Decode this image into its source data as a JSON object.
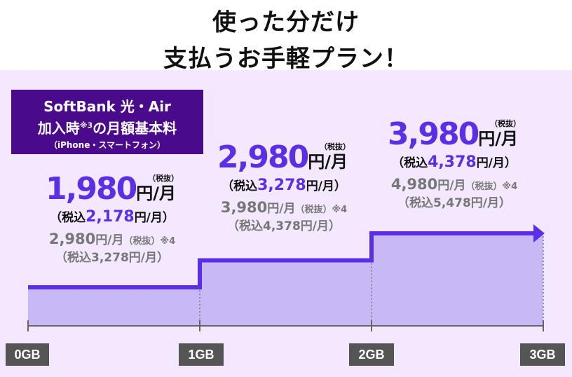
{
  "header": {
    "title_line1": "使った分だけ",
    "title_line2": "支払うお手軽プラン！"
  },
  "badge": {
    "line1": "SoftBank 光・Air",
    "line2": "加入時",
    "line2_sup": "※3",
    "line2_rest": "の月額基本料",
    "line3": "（iPhone・スマートフォン）"
  },
  "colors": {
    "accent": "#5b2fe6",
    "fill": "#c8b8f6",
    "badge": "#4a0a8c",
    "background": "#f3e8fd"
  },
  "tiers": [
    {
      "price": "1,980",
      "unit": "円/月",
      "tax_note": "（税抜）",
      "incl_prefix": "（税込",
      "incl_price": "2,178",
      "incl_suffix": "円/月）",
      "alt_price": "2,980",
      "alt_unit": "円/月",
      "alt_note": "（税抜）※4",
      "alt_incl": "（税込3,278円/月）"
    },
    {
      "price": "2,980",
      "unit": "円/月",
      "tax_note": "（税抜）",
      "incl_prefix": "（税込",
      "incl_price": "3,278",
      "incl_suffix": "円/月）",
      "alt_price": "3,980",
      "alt_unit": "円/月",
      "alt_note": "（税抜）※4",
      "alt_incl": "（税込4,378円/月）"
    },
    {
      "price": "3,980",
      "unit": "円/月",
      "tax_note": "（税抜）",
      "incl_prefix": "（税込",
      "incl_price": "4,378",
      "incl_suffix": "円/月）",
      "alt_price": "4,980",
      "alt_unit": "円/月",
      "alt_note": "（税抜）※4",
      "alt_incl": "（税込5,478円/月）"
    }
  ],
  "chart_data": {
    "type": "area",
    "title": "使った分だけ支払うお手軽プラン！",
    "x_ticks": [
      "0GB",
      "1GB",
      "2GB",
      "3GB"
    ],
    "steps": [
      {
        "from_gb": 0,
        "to_gb": 1,
        "price_yen": 1980
      },
      {
        "from_gb": 1,
        "to_gb": 2,
        "price_yen": 2980
      },
      {
        "from_gb": 2,
        "to_gb": 3,
        "price_yen": 3980
      }
    ],
    "xlabel": "",
    "ylabel": ""
  }
}
